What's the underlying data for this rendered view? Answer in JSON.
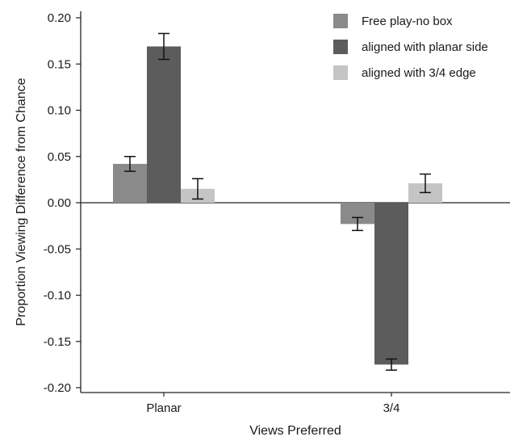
{
  "chart_data": {
    "type": "bar",
    "title": "",
    "xlabel": "Views Preferred",
    "ylabel": "Proportion Viewing Difference from Chance",
    "categories": [
      "Planar",
      "3/4"
    ],
    "ylim": [
      -0.2,
      0.2
    ],
    "yticks": [
      "0.20",
      "0.15",
      "0.10",
      "0.05",
      "0.00",
      "-0.05",
      "-0.10",
      "-0.15",
      "-0.20"
    ],
    "ytick_values": [
      0.2,
      0.15,
      0.1,
      0.05,
      0.0,
      -0.05,
      -0.1,
      -0.15,
      -0.2
    ],
    "grid": false,
    "legend_position": "top-right",
    "error_bars": true,
    "series": [
      {
        "name": "Free play-no box",
        "color": "#8a8a8a",
        "values": [
          0.042,
          -0.023
        ],
        "errors": [
          0.008,
          0.007
        ]
      },
      {
        "name": "aligned with planar side",
        "color": "#5c5c5c",
        "values": [
          0.169,
          -0.175
        ],
        "errors": [
          0.014,
          0.006
        ]
      },
      {
        "name": "aligned with 3/4 edge",
        "color": "#c4c4c4",
        "values": [
          0.015,
          0.021
        ],
        "errors": [
          0.011,
          0.01
        ]
      }
    ]
  }
}
